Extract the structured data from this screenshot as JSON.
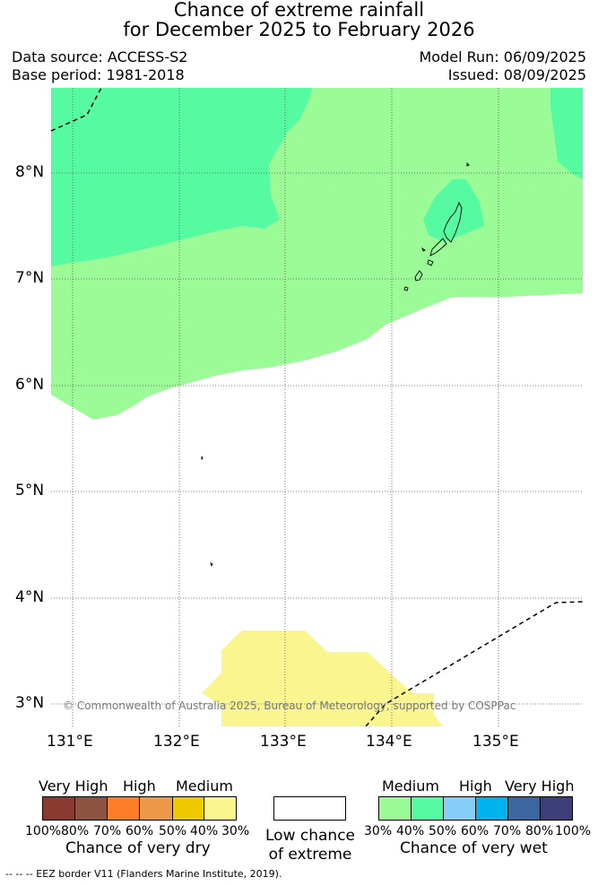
{
  "title_line1": "Chance of extreme rainfall",
  "title_line2": "for December 2025 to February 2026",
  "data_source": "Data source: ACCESS-S2",
  "base_period": "Base period: 1981-2018",
  "model_run": "Model Run: 06/09/2025",
  "issued": "Issued: 08/09/2025",
  "map": {
    "lat_labels": [
      "8°N",
      "7°N",
      "6°N",
      "5°N",
      "4°N",
      "3°N"
    ],
    "lon_labels": [
      "131°E",
      "132°E",
      "133°E",
      "134°E",
      "135°E"
    ],
    "copyright": "© Commonwealth of Australia 2025, Bureau of Meteorology, supported by COSPPac"
  },
  "colors": {
    "dry_very_high_1": "#8b3a32",
    "dry_very_high_2": "#8c5440",
    "dry_high_1": "#fd7d28",
    "dry_high_2": "#ec9a4a",
    "dry_medium_1": "#eec900",
    "dry_medium_2": "#fbf58f",
    "wet_medium_1": "#9afb97",
    "wet_medium_2": "#56fba1",
    "wet_high_1": "#86cefa",
    "wet_high_2": "#00b1ec",
    "wet_very_high_1": "#3b66a0",
    "wet_very_high_2": "#3e3e7a"
  },
  "legend": {
    "dry": {
      "categories": [
        "Very High",
        "High",
        "Medium"
      ],
      "percents": [
        "100%",
        "80%",
        "70%",
        "60%",
        "50%",
        "40%",
        "30%"
      ],
      "caption": "Chance of very dry"
    },
    "low": {
      "caption_line1": "Low chance",
      "caption_line2": "of extreme"
    },
    "wet": {
      "categories": [
        "Medium",
        "High",
        "Very High"
      ],
      "percents": [
        "30%",
        "40%",
        "50%",
        "60%",
        "70%",
        "80%",
        "100%"
      ],
      "caption": "Chance of very wet"
    }
  },
  "footer": "--  --  -- EEZ border V11 (Flanders Marine Institute, 2019)."
}
